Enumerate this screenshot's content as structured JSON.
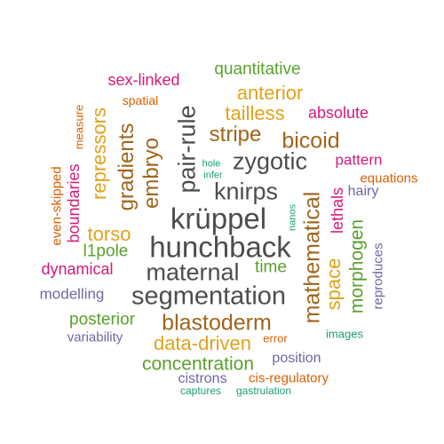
{
  "colors": {
    "gray": "#4d4d4d",
    "brown": "#a0651c",
    "gold": "#e0a21a",
    "green": "#5aa02c",
    "magenta": "#d6197c",
    "orange": "#d95f02",
    "purple": "#6d67a8",
    "teal": "#1b9e77"
  },
  "words": [
    {
      "text": "hunchback",
      "color": "gray"
    },
    {
      "text": "krüppel",
      "color": "gray"
    },
    {
      "text": "segmentation",
      "color": "gray"
    },
    {
      "text": "maternal",
      "color": "gray"
    },
    {
      "text": "zygotic",
      "color": "gray"
    },
    {
      "text": "knirps",
      "color": "gray"
    },
    {
      "text": "pair-rule",
      "color": "gray"
    },
    {
      "text": "blastoderm",
      "color": "brown"
    },
    {
      "text": "mathematical",
      "color": "brown"
    },
    {
      "text": "bicoid",
      "color": "brown"
    },
    {
      "text": "stripe",
      "color": "brown"
    },
    {
      "text": "embryo",
      "color": "brown"
    },
    {
      "text": "gradients",
      "color": "brown"
    },
    {
      "text": "data-driven",
      "color": "gold"
    },
    {
      "text": "space",
      "color": "gold"
    },
    {
      "text": "torso",
      "color": "gold"
    },
    {
      "text": "repressors",
      "color": "gold"
    },
    {
      "text": "tailless",
      "color": "gold"
    },
    {
      "text": "anterior",
      "color": "gold"
    },
    {
      "text": "morphogen",
      "color": "green"
    },
    {
      "text": "concentration",
      "color": "green"
    },
    {
      "text": "posterior",
      "color": "green"
    },
    {
      "text": "time",
      "color": "green"
    },
    {
      "text": "l1pole",
      "color": "green"
    },
    {
      "text": "quantitative",
      "color": "green"
    },
    {
      "text": "boundaries",
      "color": "magenta"
    },
    {
      "text": "dynamical",
      "color": "magenta"
    },
    {
      "text": "lethals",
      "color": "magenta"
    },
    {
      "text": "pattern",
      "color": "magenta"
    },
    {
      "text": "absolute",
      "color": "magenta"
    },
    {
      "text": "sex-linked",
      "color": "magenta"
    },
    {
      "text": "even-skipped",
      "color": "orange"
    },
    {
      "text": "measure",
      "color": "orange"
    },
    {
      "text": "spatial",
      "color": "orange"
    },
    {
      "text": "equations",
      "color": "orange"
    },
    {
      "text": "error",
      "color": "orange"
    },
    {
      "text": "cis-regulatory",
      "color": "orange"
    },
    {
      "text": "modelling",
      "color": "purple"
    },
    {
      "text": "variability",
      "color": "purple"
    },
    {
      "text": "position",
      "color": "purple"
    },
    {
      "text": "cistrons",
      "color": "purple"
    },
    {
      "text": "hairy",
      "color": "purple"
    },
    {
      "text": "reproduces",
      "color": "purple"
    },
    {
      "text": "hole",
      "color": "teal"
    },
    {
      "text": "infer",
      "color": "teal"
    },
    {
      "text": "nanos",
      "color": "teal"
    },
    {
      "text": "images",
      "color": "teal"
    },
    {
      "text": "captures",
      "color": "teal"
    },
    {
      "text": "gastrulation",
      "color": "teal"
    }
  ]
}
